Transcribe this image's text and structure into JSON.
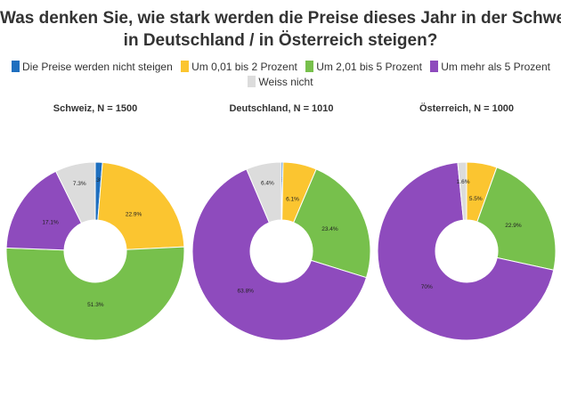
{
  "title_lines": [
    "Was denken Sie, wie stark werden die Preise dieses Jahr in der Schweiz /",
    "in Deutschland / in Österreich steigen?"
  ],
  "legend": [
    {
      "label": "Die Preise werden nicht steigen",
      "color": "#1f6fbf"
    },
    {
      "label": "Um 0,01 bis 2 Prozent",
      "color": "#fbc530"
    },
    {
      "label": "Um 2,01 bis 5 Prozent",
      "color": "#77c04c"
    },
    {
      "label": "Um mehr als 5 Prozent",
      "color": "#8e4bbd"
    },
    {
      "label": "Weiss nicht",
      "color": "#dcdcdc"
    }
  ],
  "chart_data": [
    {
      "type": "pie",
      "title": "Schweiz, N = 1500",
      "categories": [
        "Die Preise werden nicht steigen",
        "Um 0,01 bis 2 Prozent",
        "Um 2,01 bis 5 Prozent",
        "Um mehr als 5 Prozent",
        "Weiss nicht"
      ],
      "values": [
        1.3,
        22.9,
        51.3,
        17.1,
        7.3
      ],
      "labels": [
        "1.3%",
        "22.9%",
        "51.3%",
        "17.1%",
        "7.3%"
      ]
    },
    {
      "type": "pie",
      "title": "Deutschland, N = 1010",
      "categories": [
        "Die Preise werden nicht steigen",
        "Um 0,01 bis 2 Prozent",
        "Um 2,01 bis 5 Prozent",
        "Um mehr als 5 Prozent",
        "Weiss nicht"
      ],
      "values": [
        0.3,
        6.1,
        23.4,
        63.8,
        6.4
      ],
      "labels": [
        "0.3%",
        "6.1%",
        "23.4%",
        "63.8%",
        "6.4%"
      ]
    },
    {
      "type": "pie",
      "title": "Österreich, N = 1000",
      "categories": [
        "Die Preise werden nicht steigen",
        "Um 0,01 bis 2 Prozent",
        "Um 2,01 bis 5 Prozent",
        "Um mehr als 5 Prozent",
        "Weiss nicht"
      ],
      "values": [
        0,
        5.5,
        22.9,
        70,
        1.6
      ],
      "labels": [
        "",
        "5.5%",
        "22.9%",
        "70%",
        "1.6%"
      ]
    }
  ]
}
